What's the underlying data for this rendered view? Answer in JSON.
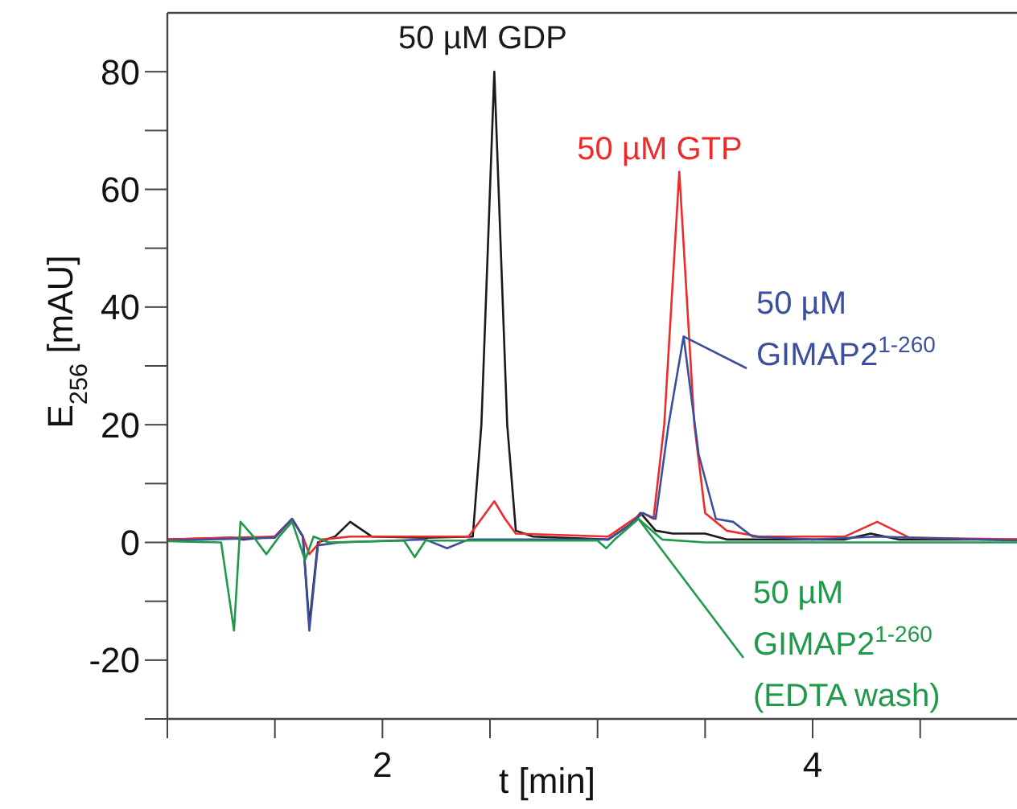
{
  "chart_data": {
    "type": "line",
    "xlabel": "t [min]",
    "ylabel": "E$_{256}$ [mAU]",
    "xlim": [
      1,
      4.95
    ],
    "ylim": [
      -30,
      90
    ],
    "xticks": [
      {
        "value": 1,
        "label": null
      },
      {
        "value": 1.5,
        "label": null
      },
      2,
      {
        "value": 2.5,
        "label": null
      },
      {
        "value": 3,
        "label": null
      },
      {
        "value": 3.5,
        "label": null
      },
      4,
      {
        "value": 4.5,
        "label": null
      }
    ],
    "yticks": [
      {
        "value": -30,
        "label": null
      },
      -20,
      {
        "value": -10,
        "label": null
      },
      0,
      {
        "value": 10,
        "label": null
      },
      20,
      {
        "value": 30,
        "label": null
      },
      40,
      {
        "value": 50,
        "label": null
      },
      60,
      {
        "value": 70,
        "label": null
      },
      80
    ],
    "grid": false,
    "marker": "none",
    "line_style": "solid",
    "series": [
      {
        "name": "50 µM GDP",
        "color": "#1a1a1a",
        "x": [
          1.0,
          1.3,
          1.35,
          1.5,
          1.58,
          1.63,
          1.66,
          1.7,
          1.78,
          1.85,
          1.95,
          2.2,
          2.42,
          2.46,
          2.52,
          2.58,
          2.62,
          2.7,
          3.05,
          3.15,
          3.2,
          3.27,
          3.35,
          3.5,
          3.6,
          4.15,
          4.27,
          4.4,
          4.95
        ],
        "values": [
          0.5,
          0.8,
          0.5,
          1,
          4,
          1,
          -14,
          0,
          1,
          3.5,
          1,
          0.8,
          1,
          20,
          80,
          20,
          2,
          1,
          0.5,
          3,
          5,
          2,
          1.5,
          1.5,
          0.5,
          0.5,
          1.5,
          0.5,
          0.5
        ]
      },
      {
        "name": "50 µM GTP",
        "color": "#ee2b2b",
        "x": [
          1.0,
          1.5,
          1.58,
          1.63,
          1.66,
          1.72,
          1.85,
          2.4,
          2.48,
          2.52,
          2.57,
          2.62,
          3.05,
          3.15,
          3.21,
          3.26,
          3.31,
          3.38,
          3.45,
          3.5,
          3.6,
          3.75,
          4.15,
          4.3,
          4.45,
          4.95
        ],
        "values": [
          0.5,
          1,
          4,
          1,
          -2,
          0.5,
          1,
          1,
          5,
          7,
          4,
          1.5,
          1,
          3.5,
          5,
          4,
          20,
          63,
          20,
          5,
          2,
          1,
          1,
          3.5,
          0.8,
          0.5
        ]
      },
      {
        "name": "50 µM GIMAP2$^{1-260}$",
        "color": "#3b4ea0",
        "x": [
          1.0,
          1.5,
          1.58,
          1.63,
          1.66,
          1.7,
          1.8,
          2.2,
          2.3,
          2.4,
          3.05,
          3.15,
          3.21,
          3.27,
          3.33,
          3.4,
          3.47,
          3.55,
          3.63,
          3.72,
          4.0,
          4.3,
          4.95
        ],
        "values": [
          0.3,
          0.8,
          4,
          1,
          -15,
          -0.5,
          0,
          0.5,
          -1,
          0.5,
          0.5,
          3,
          5,
          4,
          20,
          35,
          15,
          4,
          3.5,
          1,
          0.5,
          1,
          0.3
        ]
      },
      {
        "name": "50 µM GIMAP2$^{1-260}$ (EDTA wash)",
        "color": "#1f9a4a",
        "x": [
          1.0,
          1.25,
          1.31,
          1.34,
          1.4,
          1.46,
          1.52,
          1.58,
          1.64,
          1.68,
          1.75,
          2.1,
          2.15,
          2.2,
          3.0,
          3.04,
          3.08,
          3.19,
          3.3,
          3.5,
          4.95
        ],
        "values": [
          0.2,
          0,
          -15,
          3.5,
          1,
          -2,
          1,
          3.5,
          -3,
          1,
          0,
          0.3,
          -2.5,
          0.3,
          0.3,
          -1,
          0.5,
          4,
          0.5,
          0,
          0
        ]
      }
    ]
  }
}
